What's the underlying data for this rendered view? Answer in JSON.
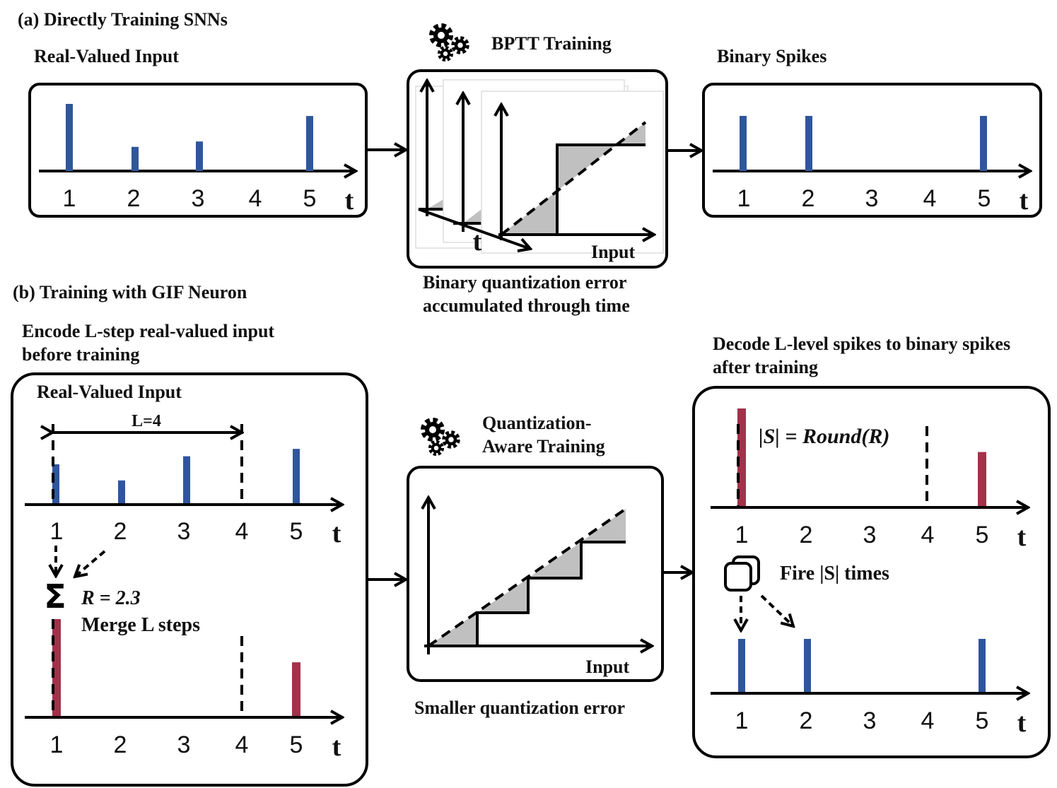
{
  "colors": {
    "blue_spike": "#2f569c",
    "red_spike": "#a3314a",
    "error_fill": "#c0c0c0"
  },
  "section_a": {
    "title": "(a) Directly Training SNNs",
    "input_label": "Real-Valued Input",
    "bptt_label": "BPTT Training",
    "bptt_x_label": "Input",
    "bptt_t_label": "t",
    "output_label": "Binary Spikes",
    "caption_line1": "Binary quantization error",
    "caption_line2": "accumulated through time",
    "ticks": [
      "1",
      "2",
      "3",
      "4",
      "5"
    ],
    "t_label": "t",
    "input_spikes": [
      1.0,
      0.36,
      0.44,
      0,
      0.82
    ],
    "binary_spikes": [
      1,
      1,
      0,
      0,
      1
    ]
  },
  "section_b": {
    "title": "(b) Training with GIF Neuron",
    "encode_line1": "Encode L-step real-valued input",
    "encode_line2": "before training",
    "input_label": "Real-Valued Input",
    "window_label": "L=4",
    "sum_symbol": "Σ",
    "r_value": "R = 2.3",
    "merge_label": "Merge L steps",
    "ticks": [
      "1",
      "2",
      "3",
      "4",
      "5"
    ],
    "t_label": "t",
    "input_spikes": [
      0.6,
      0.36,
      0.72,
      0,
      0.83
    ],
    "merged_spikes": [
      1.0,
      0,
      0,
      0,
      0.56
    ],
    "qat_line1": "Quantization-",
    "qat_line2": "Aware Training",
    "qat_x_label": "Input",
    "qat_caption": "Smaller quantization error",
    "decode_line1": "Decode L-level spikes to binary spikes",
    "decode_line2": "after training",
    "formula": "|S| = Round(R)",
    "fire_label": "Fire |S| times",
    "level_spikes": [
      1.0,
      0,
      0,
      0,
      0.56
    ],
    "decoded_spikes": [
      1,
      1,
      0,
      0,
      1
    ]
  }
}
